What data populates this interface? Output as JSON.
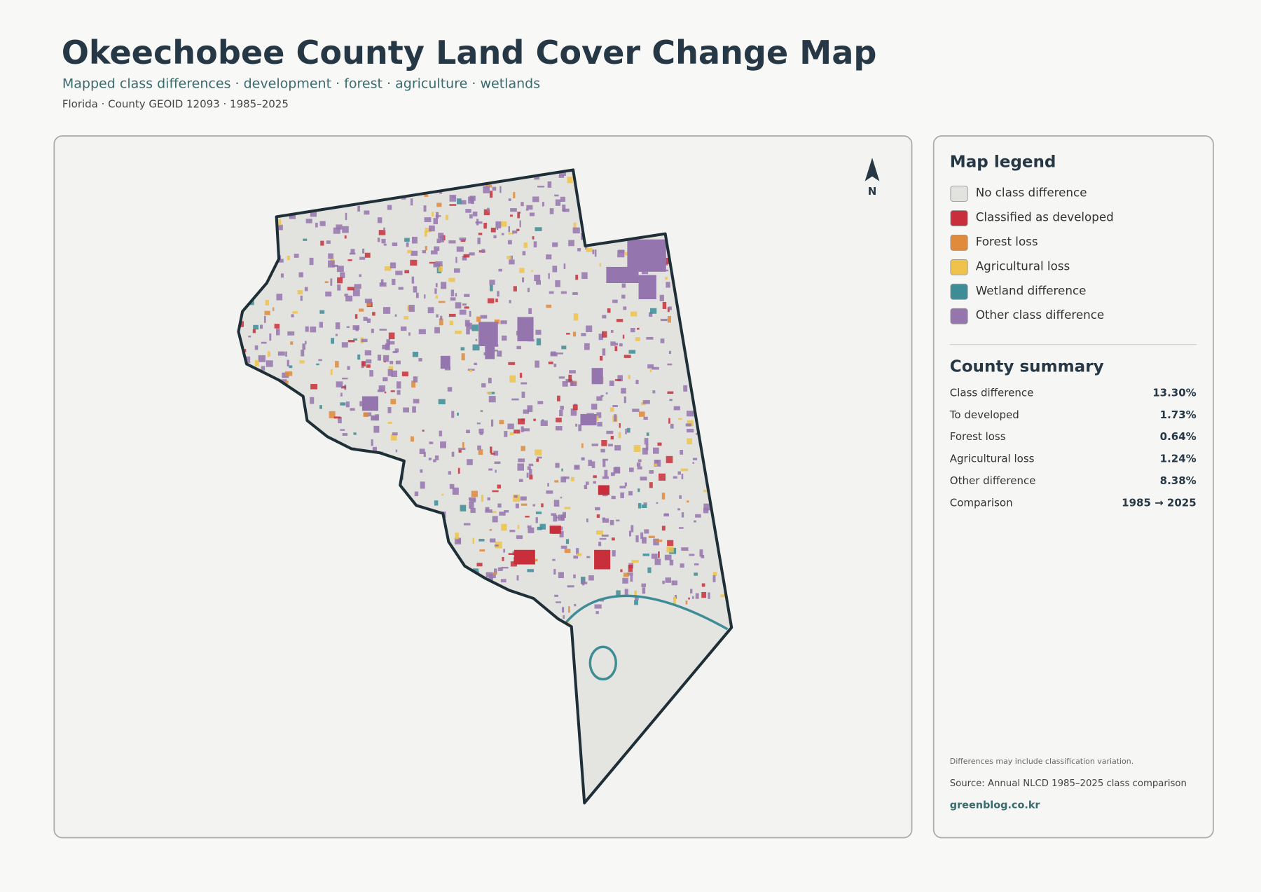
{
  "header": {
    "title": "Okeechobee County Land Cover Change Map",
    "subtitle": "Mapped class differences · development · forest · agriculture · wetlands",
    "meta": "Florida · County GEOID 12093 · 1985–2025"
  },
  "map": {
    "north_label": "N"
  },
  "legend": {
    "title": "Map legend",
    "items": [
      {
        "label": "No class difference",
        "color": "#e2e2de"
      },
      {
        "label": "Classified as developed",
        "color": "#c82f3a"
      },
      {
        "label": "Forest loss",
        "color": "#e08a3c"
      },
      {
        "label": "Agricultural loss",
        "color": "#efc34a"
      },
      {
        "label": "Wetland difference",
        "color": "#3e8c96"
      },
      {
        "label": "Other class difference",
        "color": "#9575ae"
      }
    ]
  },
  "summary": {
    "title": "County summary",
    "rows": [
      {
        "label": "Class difference",
        "value": "13.30%"
      },
      {
        "label": "To developed",
        "value": "1.73%"
      },
      {
        "label": "Forest loss",
        "value": "0.64%"
      },
      {
        "label": "Agricultural loss",
        "value": "1.24%"
      },
      {
        "label": "Other difference",
        "value": "8.38%"
      },
      {
        "label": "Comparison",
        "value": "1985 → 2025"
      }
    ]
  },
  "footer": {
    "note": "Differences may include classification variation.",
    "source": "Source: Annual NLCD 1985–2025 class comparison",
    "site": "greenblog.co.kr"
  }
}
